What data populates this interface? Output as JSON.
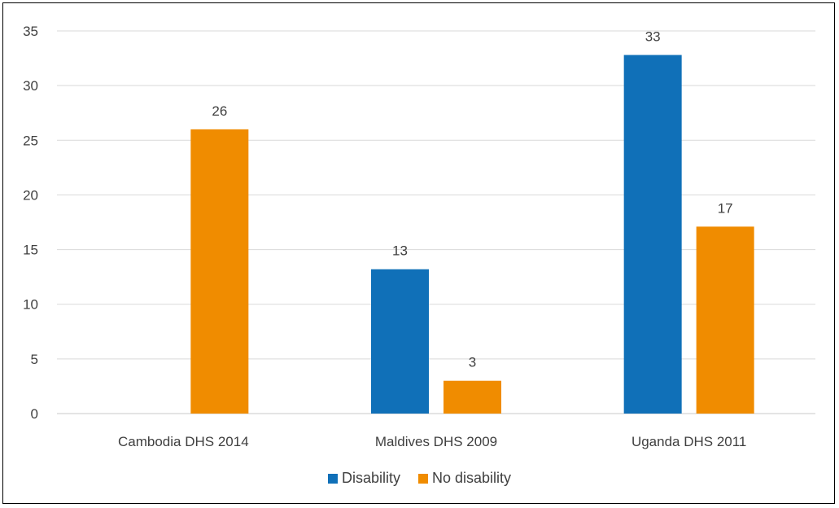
{
  "chart_data": {
    "type": "bar",
    "categories": [
      "Cambodia DHS 2014",
      "Maldives DHS 2009",
      "Uganda DHS 2011"
    ],
    "series": [
      {
        "name": "Disability",
        "color": "#1070b8",
        "values": [
          null,
          13.2,
          32.8
        ],
        "labels": [
          "",
          "13",
          "33"
        ]
      },
      {
        "name": "No disability",
        "color": "#f08c00",
        "values": [
          26.0,
          3.0,
          17.1
        ],
        "labels": [
          "26",
          "3",
          "17"
        ]
      }
    ],
    "ylim": [
      0,
      35
    ],
    "yticks": [
      "0",
      "5",
      "10",
      "15",
      "20",
      "25",
      "30",
      "35"
    ],
    "grid": true,
    "legend_position": "bottom"
  }
}
